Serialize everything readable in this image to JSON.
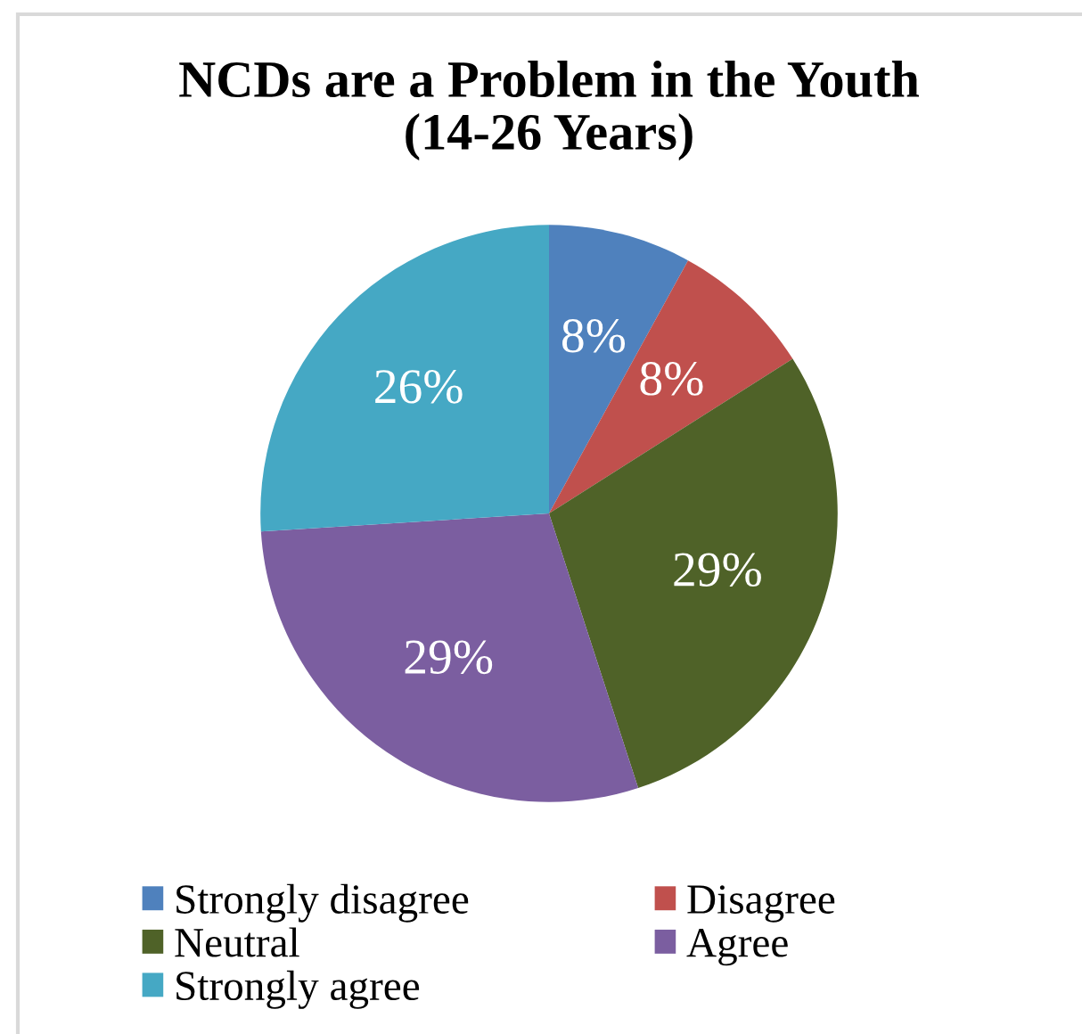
{
  "chart_data": {
    "type": "pie",
    "title": "NCDs are a Problem in the Youth\n(14-26 Years)",
    "categories": [
      "Strongly disagree",
      "Disagree",
      "Neutral",
      "Agree",
      "Strongly agree"
    ],
    "values": [
      8,
      8,
      29,
      29,
      26
    ],
    "colors": [
      "#4f81bd",
      "#c0504d",
      "#4f6228",
      "#7b5ea0",
      "#45a8c4"
    ],
    "value_labels": [
      "8%",
      "8%",
      "29%",
      "29%",
      "26%"
    ],
    "legend": "bottom"
  }
}
